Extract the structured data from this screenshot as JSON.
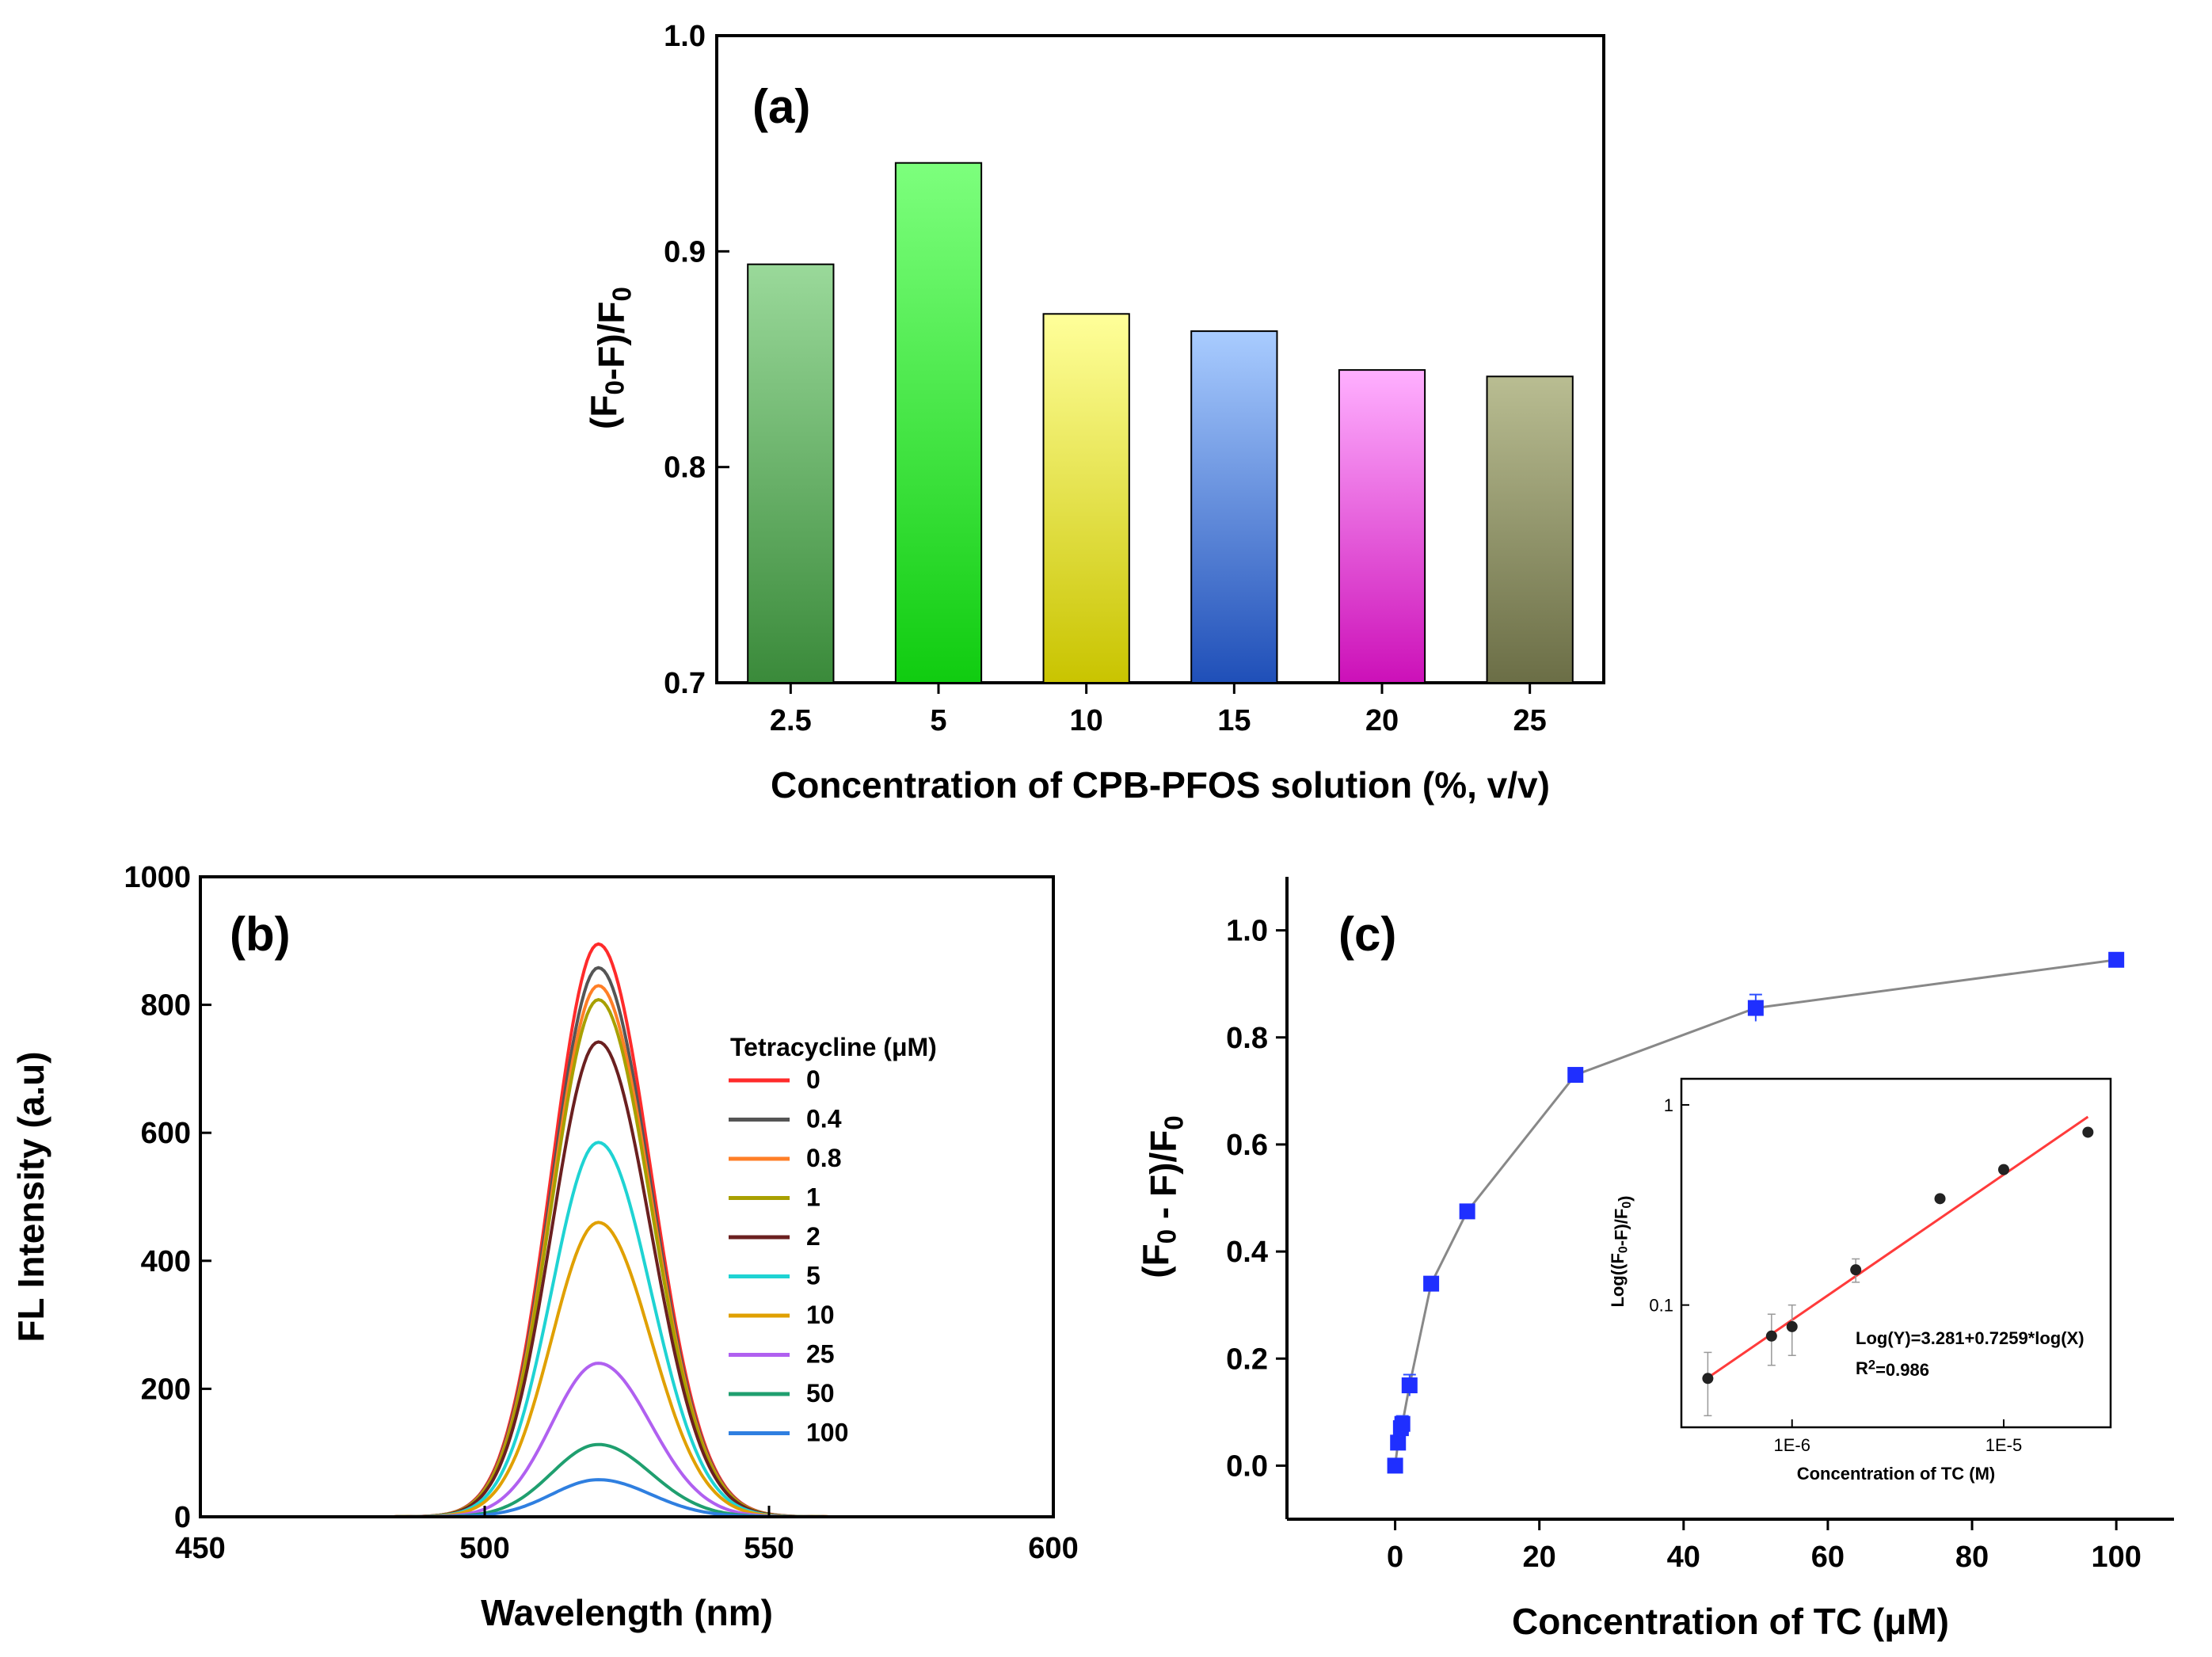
{
  "chart_data": [
    {
      "panel": "(a)",
      "type": "bar",
      "categories": [
        "2.5",
        "5",
        "10",
        "15",
        "20",
        "25"
      ],
      "values": [
        0.894,
        0.941,
        0.871,
        0.863,
        0.845,
        0.842
      ],
      "xlabel": "Concentration of CPB-PFOS solution (%, v/v)",
      "ylabel": "(F0-F)/F0",
      "ylim": [
        0.7,
        1.0
      ],
      "yticks": [
        "0.7",
        "0.8",
        "0.9",
        "1.0"
      ],
      "bar_colors": [
        [
          "#9ad99a",
          "#3a8a3a"
        ],
        [
          "#7dff7d",
          "#10cc10"
        ],
        [
          "#ffff9a",
          "#c9c400"
        ],
        [
          "#a9ccff",
          "#1f4fb8"
        ],
        [
          "#ffb0ff",
          "#cc10b8"
        ],
        [
          "#b9bd92",
          "#6b6e46"
        ]
      ]
    },
    {
      "panel": "(b)",
      "type": "line",
      "xlabel": "Wavelength (nm)",
      "ylabel": "FL Intensity (a.u)",
      "xlim": [
        450,
        600
      ],
      "ylim": [
        0,
        1000
      ],
      "xticks": [
        "450",
        "500",
        "550",
        "600"
      ],
      "yticks": [
        "0",
        "200",
        "400",
        "600",
        "800",
        "1000"
      ],
      "legend_title": "Tetracycline (μM)",
      "peak_wavelength": 520,
      "series": [
        {
          "name": "0",
          "peak": 895,
          "color": "#ff2b2b"
        },
        {
          "name": "0.4",
          "peak": 858,
          "color": "#555555"
        },
        {
          "name": "0.8",
          "peak": 830,
          "color": "#ff7f27"
        },
        {
          "name": "1",
          "peak": 808,
          "color": "#a8a000"
        },
        {
          "name": "2",
          "peak": 742,
          "color": "#6b2020"
        },
        {
          "name": "5",
          "peak": 585,
          "color": "#1fd3d3"
        },
        {
          "name": "10",
          "peak": 460,
          "color": "#e0a000"
        },
        {
          "name": "25",
          "peak": 240,
          "color": "#b060f0"
        },
        {
          "name": "50",
          "peak": 113,
          "color": "#1f9f6f"
        },
        {
          "name": "100",
          "peak": 58,
          "color": "#2f7fe0"
        }
      ]
    },
    {
      "panel": "(c)",
      "type": "scatter",
      "xlabel": "Concentration of TC (μM)",
      "ylabel": "(F0 - F)/F0",
      "xlim": [
        -15,
        108
      ],
      "ylim": [
        -0.1,
        1.1
      ],
      "xticks": [
        "0",
        "20",
        "40",
        "60",
        "80",
        "100"
      ],
      "yticks": [
        "0.0",
        "0.2",
        "0.4",
        "0.6",
        "0.8",
        "1.0"
      ],
      "x": [
        0,
        0.4,
        0.8,
        1,
        2,
        5,
        10,
        25,
        50,
        100
      ],
      "y": [
        0.0,
        0.043,
        0.07,
        0.078,
        0.15,
        0.34,
        0.475,
        0.73,
        0.855,
        0.945
      ],
      "y_err": [
        0.0,
        0.01,
        0.015,
        0.015,
        0.02,
        0.01,
        0.01,
        0.01,
        0.025,
        0.01
      ],
      "inset": {
        "type": "scatter",
        "xlabel": "Concentration of TC (M)",
        "ylabel": "Log((F0-F)/F0)",
        "xscale": "log",
        "yscale": "log",
        "xticks": [
          "1E-6",
          "1E-5"
        ],
        "yticks": [
          "0.1",
          "1"
        ],
        "x": [
          4e-07,
          8e-07,
          1e-06,
          2e-06,
          5e-06,
          1e-05,
          2.5e-05
        ],
        "y": [
          0.043,
          0.07,
          0.078,
          0.15,
          0.34,
          0.475,
          0.73
        ],
        "y_err": [
          0.015,
          0.02,
          0.022,
          0.02,
          0.01,
          0.01,
          0.01
        ],
        "fit_equation": "Log(Y)=3.281+0.7259*log(X)",
        "r2": "R²=0.986",
        "fit_color": "#ff3b3b"
      }
    }
  ]
}
